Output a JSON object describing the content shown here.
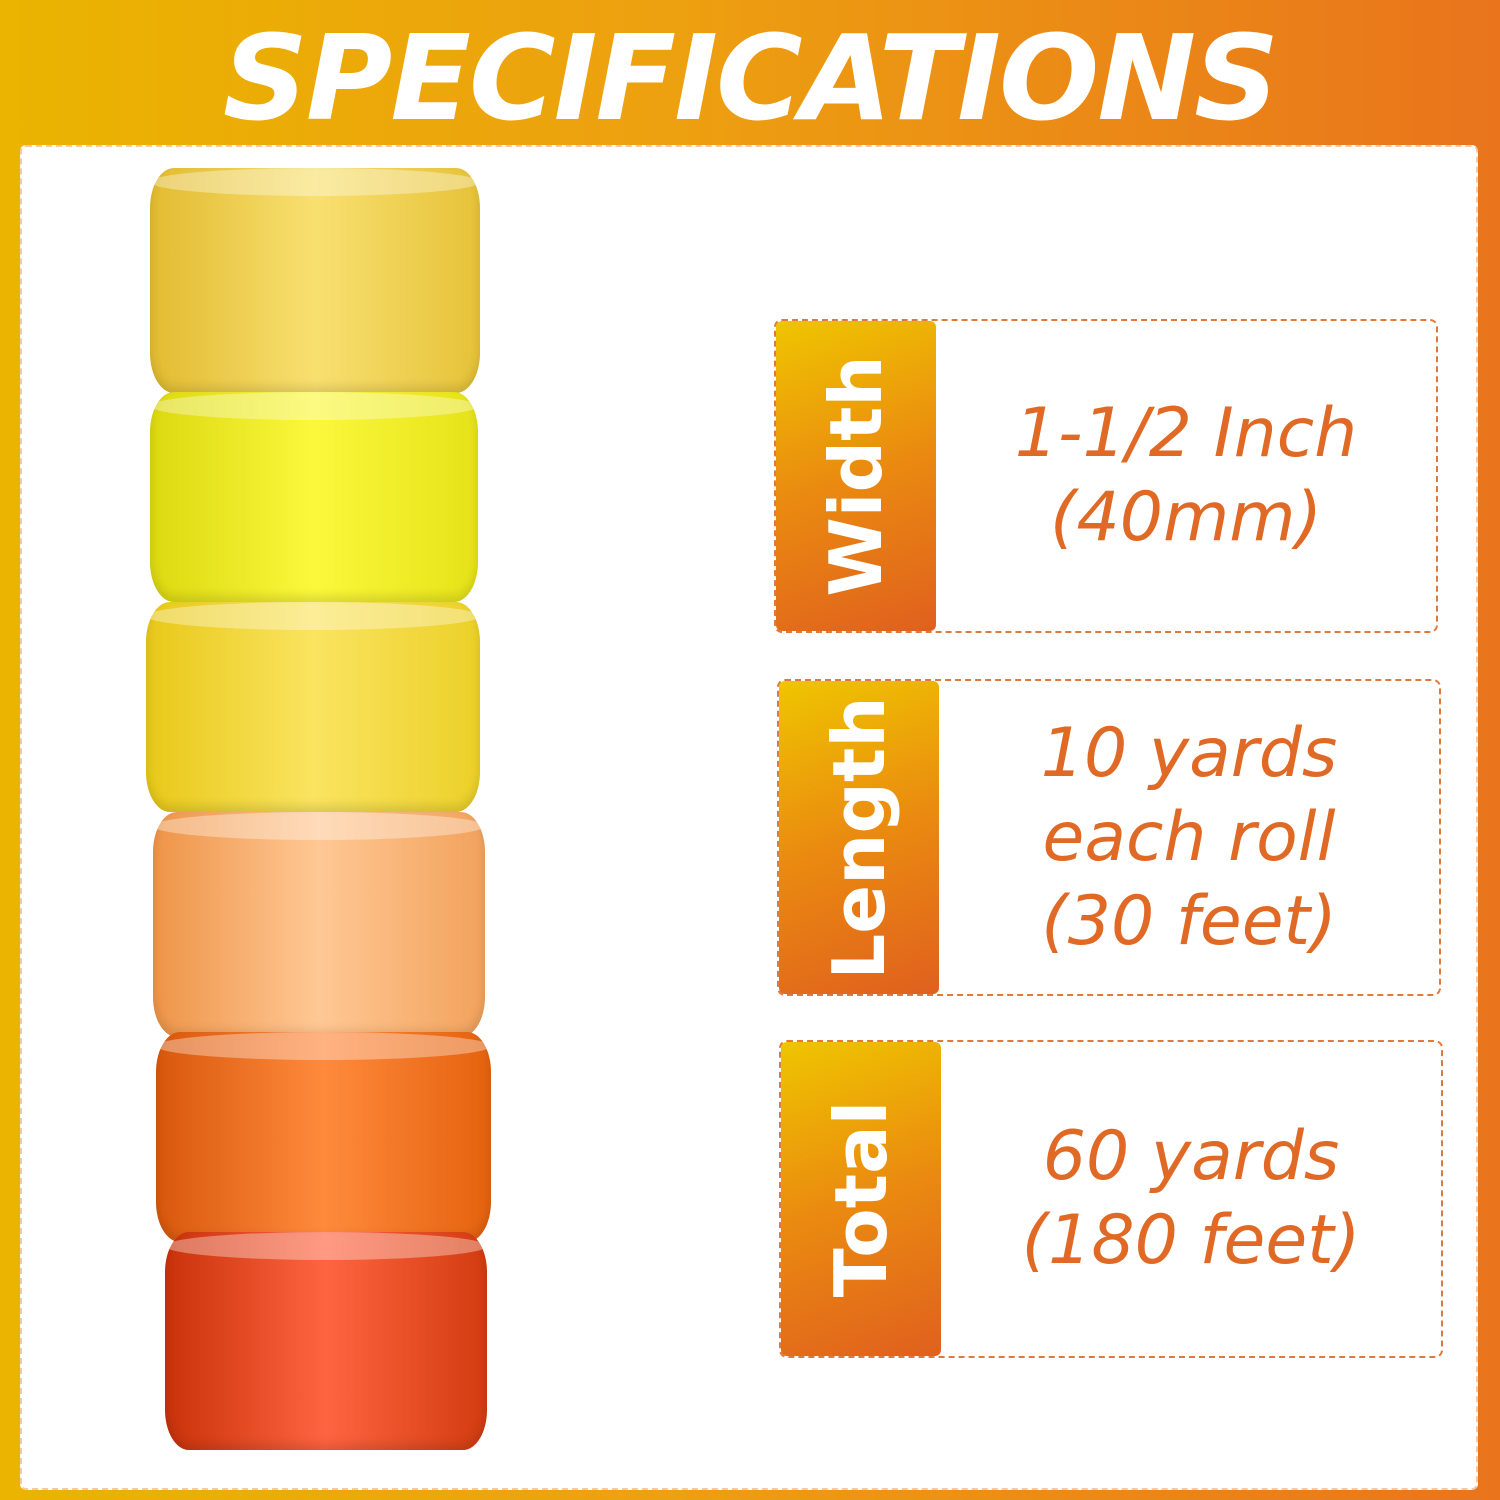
{
  "header": {
    "title": "SPECIFICATIONS"
  },
  "rolls": {
    "colors": [
      "#f0d24e",
      "#f2f01e",
      "#f5dc2c",
      "#f7b06c",
      "#f07424",
      "#e2481e"
    ]
  },
  "specs": [
    {
      "label": "Width",
      "lines": [
        "1-1/2 Inch",
        "(40mm)"
      ]
    },
    {
      "label": "Length",
      "lines": [
        "10 yards",
        "each roll",
        "(30 feet)"
      ]
    },
    {
      "label": "Total",
      "lines": [
        "60 yards",
        "(180 feet)"
      ]
    }
  ],
  "colors": {
    "accent": "#e06a25",
    "gradient_start": "#eab400",
    "gradient_end": "#e9741c"
  }
}
